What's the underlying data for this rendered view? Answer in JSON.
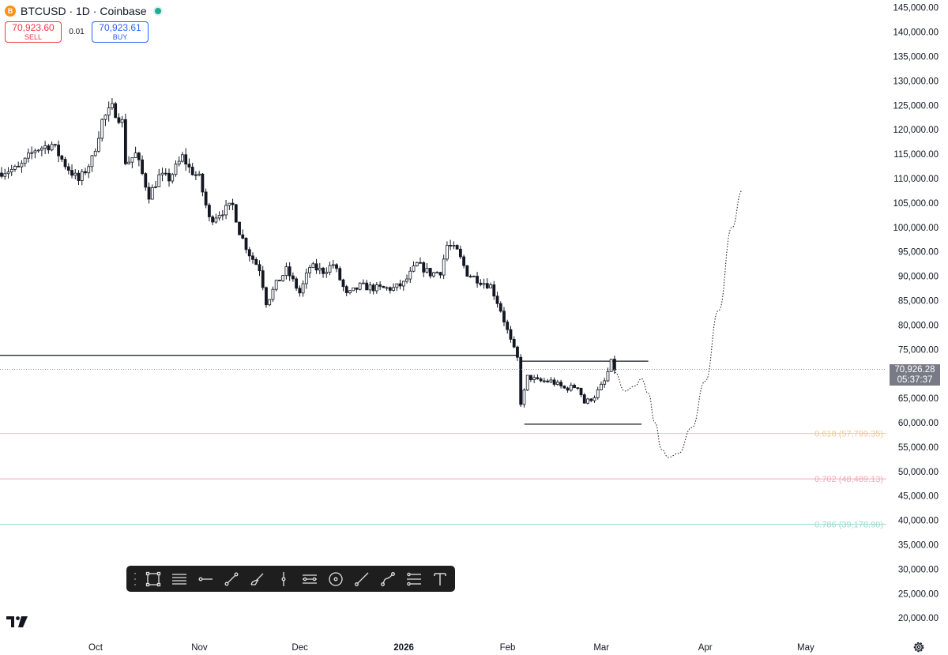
{
  "header": {
    "coin_glyph": "B",
    "title": "BTCUSD · 1D · Coinbase",
    "sell_price": "70,923.60",
    "sell_label": "SELL",
    "spread": "0.01",
    "buy_price": "70,923.61",
    "buy_label": "BUY"
  },
  "price_tag": {
    "price": "70,926.28",
    "countdown": "05:37:37"
  },
  "toolbar": {
    "tools": [
      "rectangle-icon",
      "fib-retracement-icon",
      "horizontal-ray-icon",
      "trend-line-icon",
      "brush-icon",
      "vertical-line-icon",
      "parallel-channel-icon",
      "circle-icon",
      "line-icon",
      "curve-icon",
      "long-position-icon",
      "text-icon"
    ]
  },
  "chart_data": {
    "type": "candlestick",
    "symbol": "BTCUSD",
    "interval": "1D",
    "exchange": "Coinbase",
    "ylim": [
      17500,
      147500
    ],
    "y_ticks": [
      "145,000.00",
      "140,000.00",
      "135,000.00",
      "130,000.00",
      "125,000.00",
      "120,000.00",
      "115,000.00",
      "110,000.00",
      "105,000.00",
      "100,000.00",
      "95,000.00",
      "90,000.00",
      "85,000.00",
      "80,000.00",
      "75,000.00",
      "70,000.00",
      "65,000.00",
      "60,000.00",
      "55,000.00",
      "50,000.00",
      "45,000.00",
      "40,000.00",
      "35,000.00",
      "30,000.00",
      "25,000.00",
      "20,000.00"
    ],
    "x_ticks": [
      {
        "label": "Oct",
        "date": "2025-10-01"
      },
      {
        "label": "Nov",
        "date": "2025-11-01"
      },
      {
        "label": "Dec",
        "date": "2025-12-01"
      },
      {
        "label": "2026",
        "date": "2026-01-01",
        "bold": true
      },
      {
        "label": "Feb",
        "date": "2026-02-01"
      },
      {
        "label": "Mar",
        "date": "2026-03-01"
      },
      {
        "label": "Apr",
        "date": "2026-04-01"
      },
      {
        "label": "May",
        "date": "2026-05-01"
      }
    ],
    "current_price": 70926.28,
    "close_path": [
      [
        "2025-08-30",
        108800
      ],
      [
        "2025-09-03",
        111500
      ],
      [
        "2025-09-08",
        112000
      ],
      [
        "2025-09-13",
        116000
      ],
      [
        "2025-09-18",
        117000
      ],
      [
        "2025-09-22",
        112800
      ],
      [
        "2025-09-26",
        109500
      ],
      [
        "2025-09-30",
        114000
      ],
      [
        "2025-10-03",
        122000
      ],
      [
        "2025-10-06",
        124500
      ],
      [
        "2025-10-09",
        121500
      ],
      [
        "2025-10-10",
        113000
      ],
      [
        "2025-10-13",
        115000
      ],
      [
        "2025-10-17",
        106500
      ],
      [
        "2025-10-20",
        110500
      ],
      [
        "2025-10-23",
        110000
      ],
      [
        "2025-10-27",
        114500
      ],
      [
        "2025-10-29",
        112000
      ],
      [
        "2025-11-01",
        110000
      ],
      [
        "2025-11-04",
        101500
      ],
      [
        "2025-11-07",
        103000
      ],
      [
        "2025-11-11",
        104500
      ],
      [
        "2025-11-13",
        99000
      ],
      [
        "2025-11-16",
        94500
      ],
      [
        "2025-11-19",
        91500
      ],
      [
        "2025-11-21",
        84500
      ],
      [
        "2025-11-24",
        88500
      ],
      [
        "2025-11-27",
        91300
      ],
      [
        "2025-12-01",
        86500
      ],
      [
        "2025-12-04",
        92000
      ],
      [
        "2025-12-08",
        91000
      ],
      [
        "2025-12-11",
        92500
      ],
      [
        "2025-12-15",
        86000
      ],
      [
        "2025-12-19",
        88000
      ],
      [
        "2025-12-24",
        87500
      ],
      [
        "2025-12-29",
        87500
      ],
      [
        "2026-01-01",
        88500
      ],
      [
        "2026-01-05",
        92500
      ],
      [
        "2026-01-09",
        90500
      ],
      [
        "2026-01-12",
        91000
      ],
      [
        "2026-01-14",
        96500
      ],
      [
        "2026-01-17",
        95000
      ],
      [
        "2026-01-20",
        90500
      ],
      [
        "2026-01-24",
        89000
      ],
      [
        "2026-01-27",
        88000
      ],
      [
        "2026-01-30",
        83000
      ],
      [
        "2026-02-02",
        76500
      ],
      [
        "2026-02-04",
        73000
      ],
      [
        "2026-02-05",
        63500
      ],
      [
        "2026-02-07",
        69500
      ],
      [
        "2026-02-10",
        68500
      ],
      [
        "2026-02-14",
        68500
      ],
      [
        "2026-02-18",
        67000
      ],
      [
        "2026-02-22",
        67500
      ],
      [
        "2026-02-24",
        64000
      ],
      [
        "2026-02-27",
        65500
      ],
      [
        "2026-03-02",
        68500
      ],
      [
        "2026-03-04",
        72500
      ],
      [
        "2026-03-05",
        70926
      ]
    ],
    "horizontal_lines": [
      {
        "price": 73800,
        "from": "2025-08-30",
        "to": "2026-02-04",
        "color": "#131722"
      },
      {
        "price": 72600,
        "from": "2026-02-05",
        "to": "2026-03-15",
        "color": "#131722"
      },
      {
        "price": 59700,
        "from": "2026-02-06",
        "to": "2026-03-13",
        "color": "#131722"
      }
    ],
    "fib_levels": [
      {
        "label": "0.618 (57,799.35)",
        "price": 57799.35,
        "color": "#f5c987"
      },
      {
        "label": "0.702 (48,489.13)",
        "price": 48489.13,
        "color": "#f4a9b8"
      },
      {
        "label": "0.786 (39,178.90)",
        "price": 39178.9,
        "color": "#9fd9cc"
      }
    ],
    "projection": [
      [
        "2026-03-05",
        70300
      ],
      [
        "2026-03-08",
        66500
      ],
      [
        "2026-03-11",
        67500
      ],
      [
        "2026-03-13",
        69000
      ],
      [
        "2026-03-15",
        66000
      ],
      [
        "2026-03-17",
        60000
      ],
      [
        "2026-03-19",
        54500
      ],
      [
        "2026-03-21",
        52900
      ],
      [
        "2026-03-24",
        53700
      ],
      [
        "2026-03-28",
        59000
      ],
      [
        "2026-04-01",
        68500
      ],
      [
        "2026-04-05",
        83000
      ],
      [
        "2026-04-09",
        100000
      ],
      [
        "2026-04-12",
        107500
      ]
    ]
  }
}
